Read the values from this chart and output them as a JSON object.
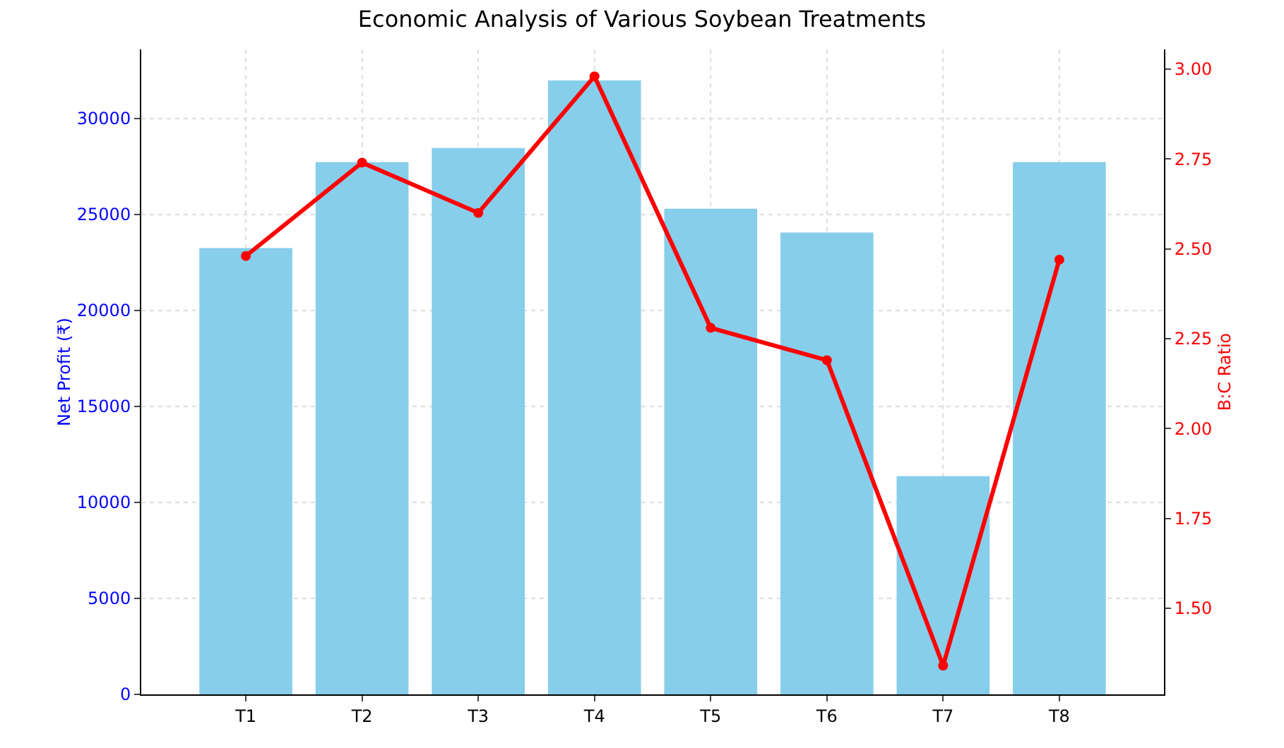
{
  "chart_data": {
    "type": "bar",
    "title": "Economic Analysis of Various Soybean Treatments",
    "ylabel": "Net Profit (₹)",
    "y2label": "B:C Ratio",
    "categories": [
      "T1",
      "T2",
      "T3",
      "T4",
      "T5",
      "T6",
      "T7",
      "T8"
    ],
    "series": [
      {
        "color": "#87ceeb",
        "values": [
          23250,
          27730,
          28460,
          31980,
          25300,
          24060,
          11370,
          27730
        ]
      },
      {
        "type": "line",
        "axis": "y2",
        "color": "#ff0000",
        "marker": "circle",
        "values": [
          2.48,
          2.74,
          2.6,
          2.98,
          2.28,
          2.19,
          1.34,
          2.47
        ]
      }
    ],
    "ylim": [
      0,
      33600
    ],
    "yticks": [
      0,
      5000,
      10000,
      15000,
      20000,
      25000,
      30000
    ],
    "y2lim": [
      1.26,
      3.055
    ],
    "y2ticks": [
      {
        "value": 1.5,
        "label": "1.50"
      },
      {
        "value": 1.75,
        "label": "1.75"
      },
      {
        "value": 2,
        "label": "2.00"
      },
      {
        "value": 2.25,
        "label": "2.25"
      },
      {
        "value": 2.5,
        "label": "2.50"
      },
      {
        "value": 2.75,
        "label": "2.75"
      },
      {
        "value": 3,
        "label": "3.00"
      }
    ],
    "grid": true
  }
}
